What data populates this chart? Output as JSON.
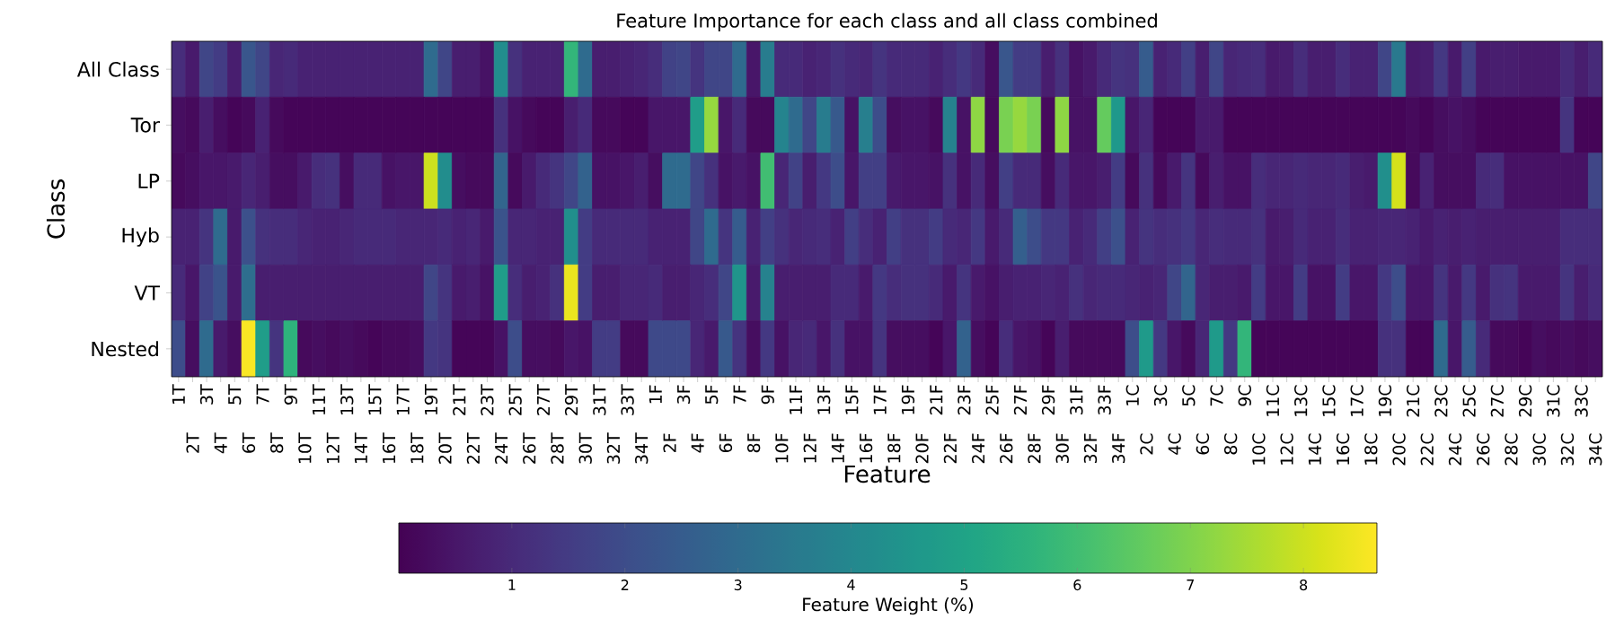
{
  "chart_data": {
    "type": "heatmap",
    "title": "Feature Importance for each class and all class combined",
    "xlabel": "Feature",
    "ylabel": "Class",
    "clabel": "Feature Weight (%)",
    "categories": [
      "1T",
      "2T",
      "3T",
      "4T",
      "5T",
      "6T",
      "7T",
      "8T",
      "9T",
      "10T",
      "11T",
      "12T",
      "13T",
      "14T",
      "15T",
      "16T",
      "17T",
      "18T",
      "19T",
      "20T",
      "21T",
      "22T",
      "23T",
      "24T",
      "25T",
      "26T",
      "27T",
      "28T",
      "29T",
      "30T",
      "31T",
      "32T",
      "33T",
      "34T",
      "1F",
      "2F",
      "3F",
      "4F",
      "5F",
      "6F",
      "7F",
      "8F",
      "9F",
      "10F",
      "11F",
      "12F",
      "13F",
      "14F",
      "15F",
      "16F",
      "17F",
      "18F",
      "19F",
      "20F",
      "21F",
      "22F",
      "23F",
      "24F",
      "25F",
      "26F",
      "27F",
      "28F",
      "29F",
      "30F",
      "31F",
      "32F",
      "33F",
      "34F",
      "1C",
      "2C",
      "3C",
      "4C",
      "5C",
      "6C",
      "7C",
      "8C",
      "9C",
      "10C",
      "11C",
      "12C",
      "13C",
      "14C",
      "15C",
      "16C",
      "17C",
      "18C",
      "19C",
      "20C",
      "21C",
      "22C",
      "23C",
      "24C",
      "25C",
      "26C",
      "27C",
      "28C",
      "29C",
      "30C",
      "31C",
      "32C",
      "33C",
      "34C"
    ],
    "y_categories": [
      "All Class",
      "Tor",
      "LP",
      "Hyb",
      "VT",
      "Nested"
    ],
    "cells": [
      [
        1.1,
        0.6,
        1.8,
        1.5,
        0.7,
        2.3,
        1.8,
        0.9,
        1.0,
        0.8,
        0.8,
        0.8,
        0.8,
        0.8,
        0.8,
        0.8,
        0.8,
        0.8,
        3.0,
        1.8,
        0.7,
        0.7,
        0.4,
        4.2,
        1.2,
        0.8,
        0.8,
        0.8,
        5.7,
        3.0,
        0.7,
        0.7,
        0.8,
        0.9,
        1.1,
        1.7,
        1.8,
        1.3,
        1.8,
        1.8,
        3.0,
        0.5,
        3.6,
        1.0,
        1.0,
        0.8,
        0.9,
        1.2,
        1.0,
        0.9,
        1.3,
        1.0,
        1.0,
        1.0,
        0.8,
        1.1,
        1.4,
        1.0,
        0.3,
        2.3,
        1.5,
        1.5,
        0.7,
        1.2,
        0.4,
        0.6,
        1.0,
        1.3,
        1.2,
        2.5,
        0.8,
        1.0,
        1.6,
        0.7,
        1.8,
        0.9,
        1.0,
        1.1,
        0.6,
        0.7,
        1.1,
        0.7,
        0.7,
        1.1,
        0.8,
        0.8,
        1.8,
        3.5,
        0.6,
        0.7,
        1.4,
        0.6,
        1.6,
        0.6,
        0.7,
        0.7,
        0.6,
        0.6,
        0.6,
        1.0,
        0.7,
        1.0
      ],
      [
        0.3,
        0.2,
        0.7,
        0.3,
        0.1,
        0.2,
        0.8,
        0.2,
        0.1,
        0.1,
        0.1,
        0.1,
        0.1,
        0.1,
        0.1,
        0.1,
        0.1,
        0.1,
        0.1,
        0.1,
        0.1,
        0.1,
        0.1,
        1.2,
        0.4,
        0.2,
        0.1,
        0.1,
        0.7,
        1.0,
        0.2,
        0.2,
        0.1,
        0.1,
        0.5,
        0.5,
        0.5,
        4.8,
        7.3,
        0.5,
        1.0,
        0.2,
        0.2,
        3.9,
        3.0,
        1.8,
        3.6,
        2.4,
        0.4,
        3.7,
        2.0,
        0.3,
        0.4,
        0.4,
        0.2,
        3.8,
        0.4,
        7.2,
        0.2,
        6.9,
        7.3,
        6.9,
        0.2,
        7.2,
        0.4,
        0.4,
        6.6,
        4.6,
        0.5,
        0.9,
        0.1,
        0.1,
        0.1,
        0.6,
        0.6,
        0.1,
        0.1,
        0.1,
        0.1,
        0.1,
        0.1,
        0.1,
        0.1,
        0.1,
        0.1,
        0.1,
        0.1,
        0.1,
        0.2,
        0.1,
        0.3,
        0.4,
        0.3,
        0.1,
        0.1,
        0.1,
        0.1,
        0.1,
        0.1,
        1.3,
        0.1,
        0.1
      ],
      [
        0.2,
        0.3,
        0.5,
        0.5,
        0.6,
        0.9,
        0.7,
        0.3,
        0.3,
        0.6,
        1.1,
        1.2,
        0.3,
        1.0,
        1.0,
        0.4,
        0.5,
        0.5,
        8.0,
        4.2,
        0.3,
        0.2,
        0.2,
        2.8,
        0.2,
        0.6,
        1.0,
        1.3,
        1.8,
        2.7,
        0.4,
        0.4,
        0.5,
        0.7,
        0.3,
        3.0,
        3.0,
        1.8,
        1.2,
        0.4,
        0.6,
        0.4,
        6.0,
        0.9,
        1.7,
        0.7,
        1.4,
        2.0,
        0.5,
        1.6,
        1.6,
        0.6,
        0.5,
        0.5,
        0.4,
        1.2,
        0.4,
        1.0,
        0.3,
        1.6,
        1.0,
        1.0,
        0.3,
        1.0,
        0.5,
        0.5,
        0.7,
        1.5,
        0.2,
        1.2,
        0.2,
        0.6,
        1.3,
        0.2,
        0.7,
        0.4,
        0.4,
        1.1,
        0.9,
        0.9,
        1.0,
        0.9,
        0.9,
        1.0,
        0.7,
        0.6,
        4.3,
        8.1,
        0.2,
        0.8,
        0.3,
        0.3,
        0.3,
        1.0,
        1.1,
        0.4,
        0.4,
        0.4,
        0.4,
        0.4,
        0.4,
        1.8
      ],
      [
        0.8,
        0.8,
        1.3,
        3.0,
        0.6,
        2.1,
        1.2,
        1.1,
        1.1,
        0.9,
        0.8,
        0.8,
        0.9,
        1.0,
        1.0,
        1.0,
        0.9,
        0.9,
        0.9,
        1.0,
        0.8,
        0.9,
        0.6,
        2.2,
        0.9,
        0.9,
        0.8,
        0.8,
        4.3,
        1.5,
        1.0,
        1.0,
        1.0,
        1.0,
        0.8,
        0.8,
        0.8,
        1.8,
        3.0,
        1.3,
        2.5,
        0.8,
        1.6,
        1.2,
        0.9,
        1.0,
        1.1,
        0.8,
        1.6,
        1.1,
        0.8,
        1.6,
        1.2,
        1.2,
        1.5,
        1.0,
        0.9,
        1.4,
        0.6,
        1.0,
        2.6,
        2.0,
        1.4,
        1.4,
        0.8,
        1.0,
        1.6,
        2.1,
        0.8,
        1.3,
        1.1,
        1.2,
        1.4,
        0.9,
        1.1,
        1.0,
        1.0,
        1.2,
        0.6,
        0.7,
        1.0,
        0.8,
        0.8,
        1.1,
        0.8,
        0.8,
        0.9,
        0.9,
        0.8,
        0.6,
        0.8,
        0.7,
        0.8,
        0.7,
        0.7,
        0.7,
        0.7,
        0.7,
        0.7,
        1.1,
        1.1,
        1.1
      ],
      [
        1.0,
        0.5,
        1.7,
        2.2,
        0.6,
        3.1,
        0.7,
        0.7,
        0.7,
        0.7,
        0.7,
        0.7,
        0.7,
        0.7,
        0.7,
        0.7,
        0.7,
        0.7,
        1.8,
        1.3,
        0.6,
        0.7,
        0.4,
        4.8,
        1.1,
        0.7,
        0.8,
        1.2,
        8.4,
        1.5,
        0.7,
        0.7,
        0.9,
        0.9,
        1.0,
        0.7,
        0.7,
        0.9,
        1.1,
        1.8,
        4.5,
        0.6,
        3.8,
        0.7,
        0.7,
        0.7,
        0.7,
        1.0,
        1.0,
        0.6,
        1.4,
        1.1,
        1.2,
        1.2,
        1.0,
        0.6,
        1.3,
        0.6,
        0.4,
        0.7,
        0.8,
        0.8,
        0.9,
        0.8,
        1.2,
        0.9,
        1.0,
        1.0,
        0.9,
        0.8,
        0.9,
        1.8,
        2.8,
        0.9,
        0.7,
        0.7,
        0.6,
        1.5,
        0.5,
        0.5,
        1.5,
        0.4,
        0.4,
        1.5,
        0.5,
        0.5,
        1.4,
        2.0,
        0.5,
        0.5,
        1.3,
        0.6,
        1.4,
        0.6,
        1.2,
        1.3,
        0.6,
        0.6,
        0.6,
        1.3,
        0.7,
        1.0
      ],
      [
        2.0,
        0.3,
        3.0,
        0.6,
        0.3,
        8.6,
        4.8,
        1.3,
        5.6,
        0.2,
        0.3,
        0.2,
        0.3,
        0.2,
        0.1,
        0.2,
        0.2,
        0.3,
        1.4,
        1.3,
        0.1,
        0.1,
        0.1,
        0.4,
        2.0,
        0.3,
        0.3,
        0.2,
        0.5,
        0.4,
        1.5,
        1.5,
        0.2,
        0.2,
        1.9,
        1.9,
        1.9,
        0.9,
        0.6,
        2.4,
        1.3,
        0.3,
        1.4,
        0.4,
        0.9,
        1.0,
        0.5,
        1.2,
        0.4,
        0.4,
        1.3,
        0.3,
        0.3,
        0.3,
        0.1,
        0.5,
        2.7,
        0.3,
        0.1,
        1.1,
        0.5,
        0.4,
        0.1,
        0.7,
        0.2,
        0.2,
        0.2,
        0.2,
        2.0,
        4.7,
        1.4,
        0.5,
        0.2,
        0.9,
        4.7,
        1.4,
        5.7,
        0.1,
        0.1,
        0.1,
        0.1,
        0.1,
        0.1,
        0.1,
        0.1,
        0.1,
        1.2,
        1.2,
        0.1,
        0.1,
        3.0,
        0.5,
        2.5,
        1.0,
        0.2,
        0.2,
        0.1,
        0.3,
        0.2,
        0.3,
        0.2,
        0.3
      ]
    ],
    "clim": [
      0,
      8.65
    ],
    "cticks": [
      1,
      2,
      3,
      4,
      5,
      6,
      7,
      8
    ]
  }
}
